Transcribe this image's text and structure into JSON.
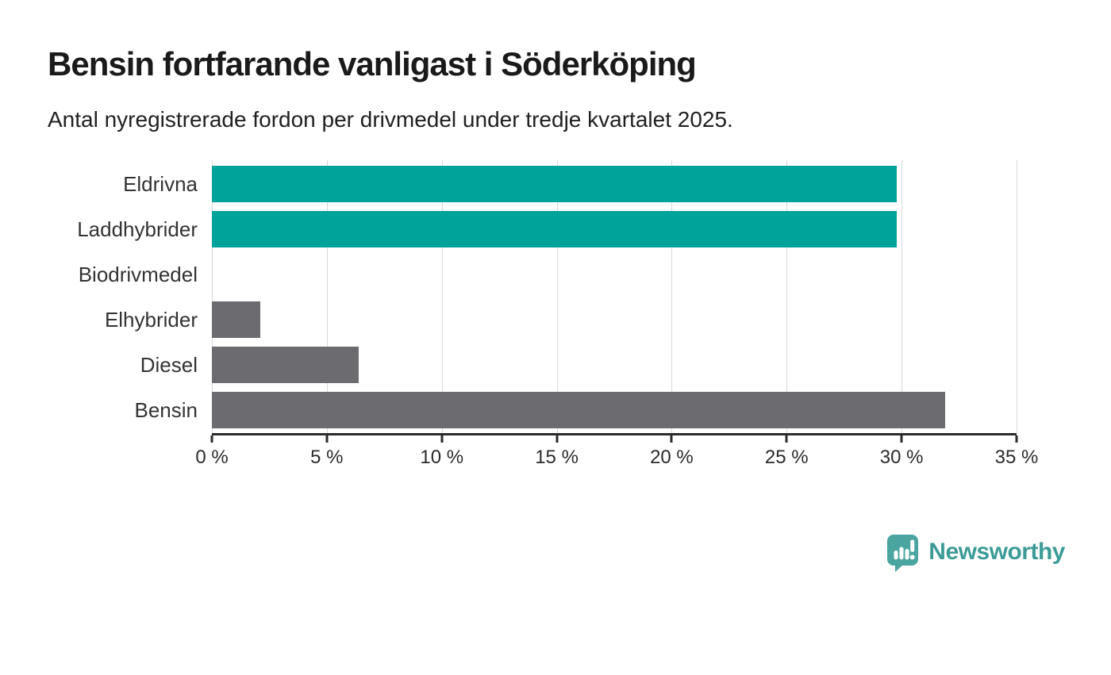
{
  "title": "Bensin fortfarande vanligast i Söderköping",
  "subtitle": "Antal nyregistrerade fordon per drivmedel under tredje kvartalet 2025.",
  "colors": {
    "teal_bar": "#00a39a",
    "gray_bar": "#6c6b70",
    "gridline": "#d9d9d9",
    "axis": "#2b2b2b",
    "logo_teal": "#3d9b97"
  },
  "chart_data": {
    "type": "bar",
    "orientation": "horizontal",
    "title": "Bensin fortfarande vanligast i Söderköping",
    "subtitle": "Antal nyregistrerade fordon per drivmedel under tredje kvartalet 2025.",
    "categories": [
      "Eldrivna",
      "Laddhybrider",
      "Biodrivmedel",
      "Elhybrider",
      "Diesel",
      "Bensin"
    ],
    "values": [
      29.8,
      29.8,
      0,
      2.1,
      6.4,
      31.9
    ],
    "value_unit": "%",
    "bar_colors": [
      "#00a39a",
      "#00a39a",
      "#00a39a",
      "#6c6b70",
      "#6c6b70",
      "#6c6b70"
    ],
    "xlim": [
      0,
      35
    ],
    "x_ticks": [
      0,
      5,
      10,
      15,
      20,
      25,
      30,
      35
    ],
    "x_tick_labels": [
      "0 %",
      "5 %",
      "10 %",
      "15 %",
      "20 %",
      "25 %",
      "30 %",
      "35 %"
    ],
    "grid": true,
    "legend": "none",
    "xlabel": "",
    "ylabel": ""
  },
  "logo": {
    "text": "Newsworthy",
    "icon": "speech-bubble-bar-chart-exclamation"
  }
}
